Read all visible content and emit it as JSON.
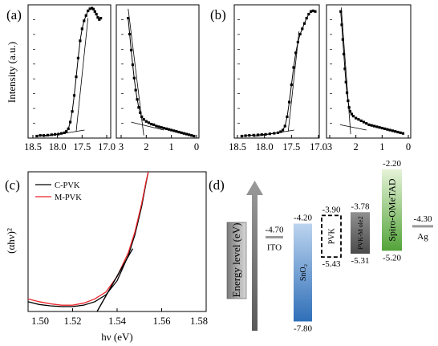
{
  "figure": {
    "panel_labels": [
      "(a)",
      "(b)",
      "(c)",
      "(d)"
    ]
  },
  "chart_data": [
    {
      "panel": "(a)",
      "type": "line",
      "ylabel": "Intensity (a.u.)",
      "subplots": [
        {
          "xlim": [
            18.5,
            17.0
          ],
          "xticks": [
            "18.5",
            "18.0",
            "17.5",
            "17.0"
          ],
          "points": [
            [
              18.42,
              0.015
            ],
            [
              18.35,
              0.02
            ],
            [
              18.28,
              0.02
            ],
            [
              18.2,
              0.022
            ],
            [
              18.12,
              0.025
            ],
            [
              18.05,
              0.028
            ],
            [
              17.98,
              0.03
            ],
            [
              17.92,
              0.035
            ],
            [
              17.86,
              0.04
            ],
            [
              17.82,
              0.05
            ],
            [
              17.78,
              0.07
            ],
            [
              17.74,
              0.12
            ],
            [
              17.7,
              0.2
            ],
            [
              17.66,
              0.32
            ],
            [
              17.62,
              0.46
            ],
            [
              17.58,
              0.6
            ],
            [
              17.54,
              0.73
            ],
            [
              17.5,
              0.82
            ],
            [
              17.46,
              0.88
            ],
            [
              17.42,
              0.92
            ],
            [
              17.38,
              0.955
            ],
            [
              17.34,
              0.97
            ],
            [
              17.3,
              0.975
            ],
            [
              17.27,
              0.968
            ],
            [
              17.24,
              0.95
            ],
            [
              17.21,
              0.93
            ],
            [
              17.18,
              0.905
            ],
            [
              17.15,
              0.89
            ],
            [
              17.12,
              0.9
            ]
          ],
          "fit_lines": [
            [
              [
                17.62,
                0.05
              ],
              [
                17.38,
                0.9
              ]
            ],
            [
              [
                18.3,
                0.01
              ],
              [
                17.45,
                0.06
              ]
            ]
          ]
        },
        {
          "xlim": [
            3,
            0
          ],
          "xticks": [
            "3",
            "2",
            "1",
            "0"
          ],
          "points": [
            [
              2.72,
              0.9
            ],
            [
              2.66,
              0.78
            ],
            [
              2.6,
              0.66
            ],
            [
              2.54,
              0.55
            ],
            [
              2.48,
              0.45
            ],
            [
              2.42,
              0.36
            ],
            [
              2.36,
              0.29
            ],
            [
              2.3,
              0.23
            ],
            [
              2.24,
              0.19
            ],
            [
              2.18,
              0.16
            ],
            [
              2.1,
              0.14
            ],
            [
              2.0,
              0.125
            ],
            [
              1.9,
              0.115
            ],
            [
              1.8,
              0.105
            ],
            [
              1.7,
              0.1
            ],
            [
              1.6,
              0.09
            ],
            [
              1.5,
              0.085
            ],
            [
              1.4,
              0.08
            ],
            [
              1.3,
              0.075
            ],
            [
              1.2,
              0.07
            ],
            [
              1.1,
              0.065
            ],
            [
              1.0,
              0.06
            ],
            [
              0.9,
              0.055
            ],
            [
              0.8,
              0.05
            ],
            [
              0.7,
              0.045
            ],
            [
              0.6,
              0.04
            ],
            [
              0.5,
              0.035
            ],
            [
              0.4,
              0.03
            ],
            [
              0.3,
              0.025
            ],
            [
              0.2,
              0.02
            ],
            [
              0.1,
              0.015
            ]
          ],
          "fit_lines": [
            [
              [
                2.72,
                0.97
              ],
              [
                2.1,
                0.02
              ]
            ],
            [
              [
                2.6,
                0.12
              ],
              [
                1.3,
                0.06
              ]
            ]
          ]
        }
      ]
    },
    {
      "panel": "(b)",
      "type": "line",
      "subplots": [
        {
          "xlim": [
            18.5,
            17.0
          ],
          "xticks": [
            "18.5",
            "18.0",
            "17.5",
            "17.0"
          ],
          "points": [
            [
              18.42,
              0.015
            ],
            [
              18.35,
              0.018
            ],
            [
              18.28,
              0.02
            ],
            [
              18.2,
              0.022
            ],
            [
              18.12,
              0.024
            ],
            [
              18.05,
              0.026
            ],
            [
              17.98,
              0.028
            ],
            [
              17.9,
              0.032
            ],
            [
              17.82,
              0.036
            ],
            [
              17.75,
              0.04
            ],
            [
              17.7,
              0.048
            ],
            [
              17.66,
              0.06
            ],
            [
              17.62,
              0.09
            ],
            [
              17.58,
              0.16
            ],
            [
              17.54,
              0.27
            ],
            [
              17.5,
              0.4
            ],
            [
              17.46,
              0.53
            ],
            [
              17.42,
              0.64
            ],
            [
              17.38,
              0.72
            ],
            [
              17.34,
              0.78
            ],
            [
              17.3,
              0.82
            ],
            [
              17.26,
              0.86
            ],
            [
              17.22,
              0.9
            ],
            [
              17.18,
              0.93
            ],
            [
              17.14,
              0.95
            ],
            [
              17.1,
              0.955
            ],
            [
              17.06,
              0.95
            ]
          ],
          "fit_lines": [
            [
              [
                17.56,
                0.05
              ],
              [
                17.36,
                0.8
              ]
            ],
            [
              [
                18.2,
                0.01
              ],
              [
                17.45,
                0.06
              ]
            ]
          ]
        },
        {
          "xlim": [
            3,
            0
          ],
          "xticks": [
            "3",
            "2",
            "1",
            "0"
          ],
          "points": [
            [
              2.58,
              0.95
            ],
            [
              2.54,
              0.85
            ],
            [
              2.5,
              0.74
            ],
            [
              2.46,
              0.63
            ],
            [
              2.42,
              0.52
            ],
            [
              2.38,
              0.42
            ],
            [
              2.34,
              0.34
            ],
            [
              2.3,
              0.28
            ],
            [
              2.26,
              0.23
            ],
            [
              2.22,
              0.2
            ],
            [
              2.16,
              0.18
            ],
            [
              2.1,
              0.165
            ],
            [
              2.0,
              0.15
            ],
            [
              1.9,
              0.14
            ],
            [
              1.8,
              0.13
            ],
            [
              1.7,
              0.12
            ],
            [
              1.6,
              0.11
            ],
            [
              1.5,
              0.1
            ],
            [
              1.4,
              0.095
            ],
            [
              1.3,
              0.09
            ],
            [
              1.2,
              0.085
            ],
            [
              1.1,
              0.08
            ],
            [
              1.0,
              0.075
            ],
            [
              0.9,
              0.07
            ],
            [
              0.8,
              0.065
            ],
            [
              0.7,
              0.06
            ],
            [
              0.6,
              0.055
            ],
            [
              0.5,
              0.05
            ],
            [
              0.4,
              0.045
            ],
            [
              0.3,
              0.04
            ],
            [
              0.2,
              0.035
            ]
          ],
          "fit_lines": [
            [
              [
                2.56,
                0.98
              ],
              [
                2.2,
                0.03
              ]
            ],
            [
              [
                2.6,
                0.1
              ],
              [
                1.6,
                0.06
              ]
            ]
          ]
        }
      ]
    },
    {
      "panel": "(c)",
      "type": "line",
      "xlabel": "hν (eV)",
      "ylabel": "(αhν)²",
      "xlim": [
        1.5,
        1.58
      ],
      "xticks": [
        "1.50",
        "1.52",
        "1.54",
        "1.56",
        "1.58"
      ],
      "ylim": [
        0,
        1
      ],
      "legend_placement": "top-left",
      "series": [
        {
          "name": "C-PVK",
          "color": "#000000",
          "points": [
            [
              1.5,
              0.07
            ],
            [
              1.505,
              0.05
            ],
            [
              1.51,
              0.04
            ],
            [
              1.515,
              0.035
            ],
            [
              1.52,
              0.035
            ],
            [
              1.525,
              0.045
            ],
            [
              1.53,
              0.07
            ],
            [
              1.535,
              0.12
            ],
            [
              1.54,
              0.22
            ],
            [
              1.545,
              0.4
            ],
            [
              1.548,
              0.55
            ],
            [
              1.551,
              0.75
            ],
            [
              1.553,
              0.92
            ],
            [
              1.554,
              1.0
            ]
          ]
        },
        {
          "name": "M-PVK",
          "color": "#e8242a",
          "points": [
            [
              1.5,
              0.09
            ],
            [
              1.505,
              0.07
            ],
            [
              1.51,
              0.055
            ],
            [
              1.515,
              0.045
            ],
            [
              1.52,
              0.045
            ],
            [
              1.525,
              0.06
            ],
            [
              1.53,
              0.09
            ],
            [
              1.535,
              0.14
            ],
            [
              1.54,
              0.25
            ],
            [
              1.545,
              0.42
            ],
            [
              1.548,
              0.57
            ],
            [
              1.551,
              0.77
            ],
            [
              1.553,
              0.93
            ],
            [
              1.554,
              1.0
            ]
          ]
        }
      ],
      "fit_lines": [
        [
          [
            1.531,
            0.0
          ],
          [
            1.547,
            0.45
          ]
        ]
      ]
    },
    {
      "panel": "(d)",
      "type": "diagram",
      "ylabel": "Energy level (eV)",
      "ylim": [
        -8.2,
        -2.0
      ],
      "levels": [
        {
          "label": "ITO",
          "kind": "line",
          "value": -4.7,
          "value_text": "-4.70"
        },
        {
          "label": "SnO₂",
          "kind": "bar",
          "top": -4.2,
          "bottom": -7.8,
          "top_text": "-4.20",
          "bottom_text": "-7.80",
          "color": "#4a86c8"
        },
        {
          "label": "PVK",
          "kind": "dashed",
          "top": -3.9,
          "bottom": -5.43,
          "top_text": "-3.90",
          "bottom_text": "-5.43",
          "color": "#f5a26b"
        },
        {
          "label": "PVK-M ole2",
          "kind": "bar",
          "top": -3.78,
          "bottom": -5.31,
          "top_text": "-3.78",
          "bottom_text": "-5.31",
          "color": "#6f6f6f"
        },
        {
          "label": "Spiro-OMeTAD",
          "kind": "bar",
          "top": -2.2,
          "bottom": -5.2,
          "top_text": "-2.20",
          "bottom_text": "-5.20",
          "color": "#5fb040"
        },
        {
          "label": "Ag",
          "kind": "line",
          "value": -4.3,
          "value_text": "-4.30"
        }
      ]
    }
  ]
}
